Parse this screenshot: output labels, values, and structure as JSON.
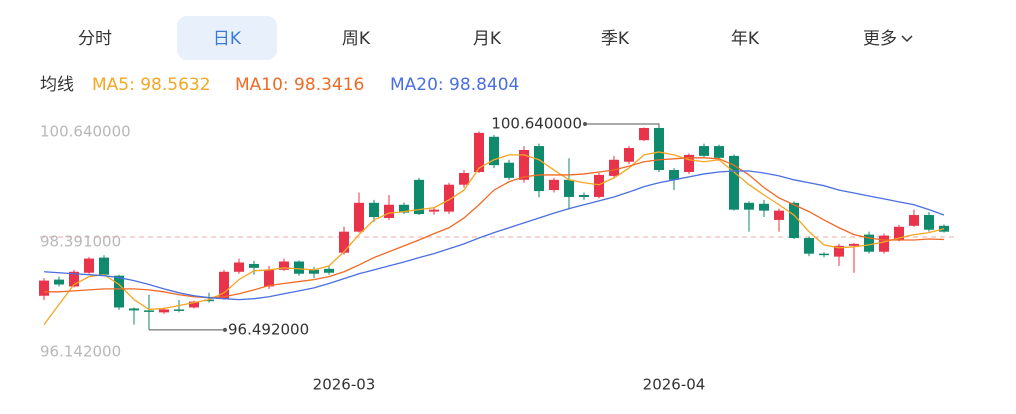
{
  "tabs": {
    "items": [
      "分时",
      "日K",
      "周K",
      "月K",
      "季K",
      "年K",
      "更多"
    ],
    "active": 1
  },
  "chart_data": {
    "type": "candlestick",
    "legend_title": "均线",
    "categories": [
      null,
      null,
      null,
      null,
      null,
      null,
      null,
      null,
      null,
      null,
      null,
      null,
      null,
      null,
      null,
      null,
      null,
      null,
      null,
      null,
      "2026-03",
      null,
      null,
      null,
      null,
      null,
      null,
      null,
      null,
      null,
      null,
      null,
      null,
      null,
      null,
      null,
      null,
      null,
      null,
      null,
      null,
      null,
      "2026-04",
      null,
      null,
      null,
      null,
      null,
      null,
      null,
      null,
      null,
      null,
      null,
      null,
      null,
      null,
      null,
      null,
      null,
      null
    ],
    "candles": {
      "up_color": "#e8334a",
      "down_color": "#0f8a6c",
      "open": [
        97.19,
        97.52,
        97.38,
        97.66,
        97.97,
        97.6,
        96.93,
        96.89,
        96.85,
        96.91,
        96.95,
        97.11,
        97.13,
        97.68,
        97.84,
        97.38,
        97.72,
        97.89,
        97.72,
        97.74,
        98.07,
        98.5,
        99.09,
        98.78,
        99.05,
        99.56,
        98.91,
        98.91,
        99.46,
        99.72,
        100.44,
        99.91,
        99.56,
        100.25,
        99.35,
        99.56,
        99.25,
        99.21,
        99.64,
        99.93,
        100.37,
        100.62,
        99.76,
        99.72,
        100.25,
        100.25,
        100.05,
        99.09,
        99.07,
        98.74,
        99.09,
        98.37,
        98.05,
        97.99,
        98.21,
        98.44,
        98.09,
        98.33,
        98.62,
        98.84,
        98.62
      ],
      "close": [
        97.5,
        97.42,
        97.68,
        97.95,
        97.62,
        96.95,
        96.89,
        96.86,
        96.91,
        96.88,
        97.07,
        97.09,
        97.68,
        97.87,
        97.76,
        97.72,
        97.89,
        97.64,
        97.64,
        97.66,
        98.5,
        99.09,
        98.8,
        99.05,
        98.89,
        98.86,
        98.95,
        99.46,
        99.7,
        100.52,
        99.86,
        99.6,
        100.17,
        99.33,
        99.56,
        99.21,
        99.21,
        99.66,
        99.97,
        100.21,
        100.62,
        99.76,
        99.56,
        100.07,
        100.05,
        100.01,
        98.95,
        98.95,
        98.93,
        98.93,
        98.37,
        98.05,
        98.03,
        98.21,
        98.25,
        98.09,
        98.42,
        98.6,
        98.84,
        98.54,
        98.5
      ],
      "high": [
        97.55,
        97.58,
        97.72,
        97.98,
        98.02,
        97.62,
        96.95,
        97.21,
        96.95,
        97.1,
        97.09,
        97.25,
        97.72,
        97.95,
        97.9,
        97.8,
        97.95,
        97.91,
        97.78,
        97.8,
        98.6,
        99.3,
        99.15,
        99.25,
        99.1,
        99.6,
        99.0,
        99.5,
        99.76,
        100.55,
        100.48,
        99.97,
        100.25,
        100.3,
        99.6,
        100.0,
        99.3,
        99.7,
        100.05,
        100.25,
        100.63,
        100.64,
        99.8,
        100.1,
        100.3,
        100.28,
        100.08,
        99.12,
        99.15,
        98.97,
        99.12,
        98.4,
        98.08,
        98.25,
        98.27,
        98.5,
        98.46,
        98.64,
        98.95,
        98.9,
        98.65
      ],
      "low": [
        97.1,
        97.38,
        97.36,
        97.64,
        97.6,
        96.9,
        96.6,
        96.492,
        96.82,
        96.85,
        96.93,
        97.05,
        97.11,
        97.64,
        97.62,
        97.33,
        97.7,
        97.6,
        97.55,
        97.62,
        98.03,
        98.48,
        98.7,
        98.74,
        98.86,
        98.84,
        98.85,
        98.86,
        99.4,
        99.7,
        99.8,
        99.56,
        99.5,
        99.2,
        99.3,
        98.95,
        99.15,
        99.18,
        99.6,
        99.88,
        100.35,
        99.72,
        99.35,
        99.68,
        100.0,
        99.95,
        98.93,
        98.5,
        98.8,
        98.5,
        98.35,
        98.0,
        97.98,
        97.8,
        97.66,
        98.05,
        98.05,
        98.3,
        98.6,
        98.5,
        98.48
      ]
    },
    "series": [
      {
        "name": "MA5: 98.5632",
        "color": "#f5a623",
        "values": [
          96.6,
          97.01,
          97.42,
          97.58,
          97.62,
          97.42,
          97.11,
          96.91,
          96.93,
          96.99,
          97.05,
          97.11,
          97.25,
          97.52,
          97.7,
          97.72,
          97.76,
          97.74,
          97.72,
          97.8,
          98.09,
          98.44,
          98.74,
          98.88,
          98.91,
          98.95,
          98.99,
          99.15,
          99.35,
          99.8,
          99.97,
          100.07,
          100.07,
          99.97,
          99.76,
          99.56,
          99.5,
          99.46,
          99.6,
          99.8,
          100.07,
          100.13,
          100.07,
          99.97,
          99.93,
          99.97,
          99.72,
          99.46,
          99.25,
          99.05,
          98.84,
          98.5,
          98.23,
          98.17,
          98.19,
          98.23,
          98.29,
          98.37,
          98.44,
          98.48,
          98.56
        ]
      },
      {
        "name": "MA10: 98.3416",
        "color": "#f06a25",
        "values": [
          97.27,
          97.27,
          97.29,
          97.31,
          97.33,
          97.33,
          97.33,
          97.31,
          97.27,
          97.21,
          97.17,
          97.15,
          97.17,
          97.23,
          97.31,
          97.4,
          97.44,
          97.48,
          97.52,
          97.58,
          97.68,
          97.82,
          97.97,
          98.09,
          98.21,
          98.33,
          98.46,
          98.58,
          98.78,
          99.05,
          99.35,
          99.52,
          99.62,
          99.66,
          99.66,
          99.66,
          99.68,
          99.72,
          99.76,
          99.84,
          99.93,
          99.97,
          99.99,
          100.01,
          100.01,
          99.99,
          99.86,
          99.66,
          99.4,
          99.19,
          99.05,
          98.91,
          98.74,
          98.58,
          98.44,
          98.37,
          98.33,
          98.33,
          98.33,
          98.35,
          98.34
        ]
      },
      {
        "name": "MA20: 98.8404",
        "color": "#4a6fe0",
        "values": [
          97.68,
          97.66,
          97.64,
          97.62,
          97.6,
          97.56,
          97.5,
          97.42,
          97.33,
          97.25,
          97.19,
          97.15,
          97.13,
          97.11,
          97.13,
          97.17,
          97.23,
          97.29,
          97.35,
          97.44,
          97.54,
          97.64,
          97.72,
          97.8,
          97.88,
          97.97,
          98.05,
          98.15,
          98.25,
          98.37,
          98.48,
          98.58,
          98.68,
          98.78,
          98.88,
          98.97,
          99.05,
          99.13,
          99.21,
          99.31,
          99.42,
          99.5,
          99.56,
          99.62,
          99.68,
          99.72,
          99.74,
          99.74,
          99.7,
          99.64,
          99.56,
          99.5,
          99.44,
          99.35,
          99.29,
          99.23,
          99.17,
          99.11,
          99.05,
          98.95,
          98.84
        ]
      }
    ],
    "annotations": [
      {
        "label": "100.640000",
        "value": 100.64,
        "side": "left"
      },
      {
        "label": "96.492000",
        "value": 96.492,
        "side": "right"
      }
    ],
    "ylim": [
      96.142,
      100.64
    ],
    "yticks": [
      {
        "value": 100.64,
        "label": "100.640000"
      },
      {
        "value": 98.391,
        "label": "98.391000"
      },
      {
        "value": 96.142,
        "label": "96.142000"
      }
    ],
    "dashed_grid_tick": 1
  }
}
